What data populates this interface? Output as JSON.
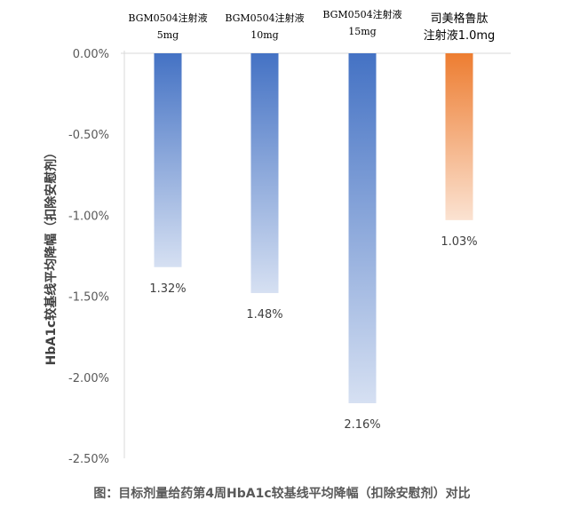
{
  "chart_data": {
    "type": "bar",
    "categories": [
      [
        "BGM0504注射液",
        "5mg"
      ],
      [
        "BGM0504注射液",
        "10mg"
      ],
      [
        "BGM0504注射液",
        "15mg"
      ],
      [
        "司美格鲁肽",
        "注射液1.0mg"
      ]
    ],
    "values": [
      -1.32,
      -1.48,
      -2.16,
      -1.03
    ],
    "data_labels": [
      "1.32%",
      "1.48%",
      "2.16%",
      "1.03%"
    ],
    "bar_colors": [
      "#4472C4",
      "#4472C4",
      "#4472C4",
      "#ED7D31"
    ],
    "gradient_fill": true,
    "ylabel": "HbA1c较基线平均降幅（扣除安慰剂）",
    "ylim": [
      -2.5,
      0
    ],
    "yticks": [
      0,
      -0.5,
      -1.0,
      -1.5,
      -2.0,
      -2.5
    ],
    "ytick_labels": [
      "0.00%",
      "-0.50%",
      "-1.00%",
      "-1.50%",
      "-2.00%",
      "-2.50%"
    ],
    "category_axis_position": "top",
    "grid": false,
    "caption": "图：目标剂量给药第4周HbA1c较基线平均降幅（扣除安慰剂）对比"
  }
}
